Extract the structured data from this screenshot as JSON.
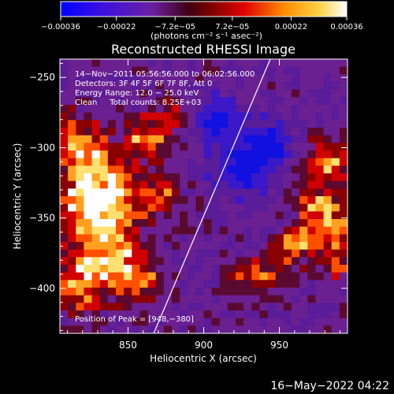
{
  "chart_data": {
    "type": "heatmap",
    "title": "Reconstructed RHESSI Image",
    "xlabel": "Heliocentric X (arcsec)",
    "ylabel": "Heliocentric Y (arcsec)",
    "xlim": [
      805,
      995
    ],
    "ylim": [
      -432,
      -237
    ],
    "x_ticks": [
      850,
      900,
      950
    ],
    "x_tick_labels": [
      "850",
      "900",
      "950"
    ],
    "y_ticks": [
      -250,
      -300,
      -350,
      -400
    ],
    "y_tick_labels": [
      "−250",
      "−300",
      "−350",
      "−400"
    ],
    "colorbar": {
      "range": [
        -0.00036,
        0.00036
      ],
      "tick_labels": [
        "−0.00036",
        "−0.00022",
        "−7.2e−05",
        "7.2e−05",
        "0.00022",
        "0.00036"
      ],
      "tick_values": [
        -0.00036,
        -0.00022,
        -7.2e-05,
        7.2e-05,
        0.00022,
        0.00036
      ],
      "unit_label": "(photons cm⁻² s⁻¹ asec⁻²)",
      "colors": [
        "#0000ff",
        "#4400d0",
        "#6a20a0",
        "#7a0000",
        "#e00000",
        "#ff8c00",
        "#ffe060",
        "#ffffff"
      ]
    },
    "annotations": [
      "14−Nov−2011 05:56:56.000 to 06:02:56.000",
      "Detectors: 3F 4F 5F 6F 7F 8F, Att 0",
      "Energy Range: 12.0 − 25.0 keV",
      "Clean     Total counts: 8.25E+03"
    ],
    "peak_label": "Position of Peak = [948,−380]",
    "limb_line": {
      "x": [
        867,
        944
      ],
      "y": [
        -432,
        -237
      ]
    },
    "grid": false
  },
  "footer": {
    "timestamp": "16−May−2022 04:22"
  }
}
